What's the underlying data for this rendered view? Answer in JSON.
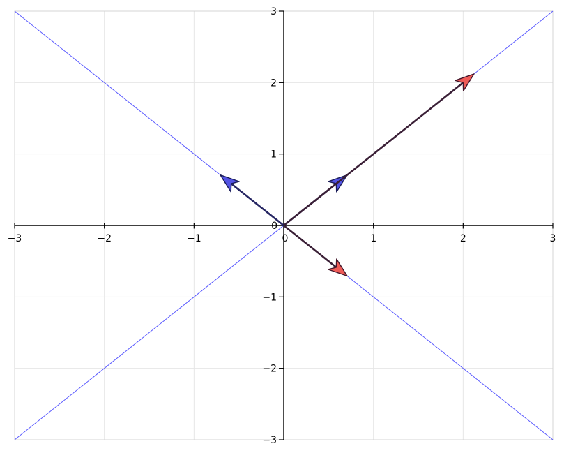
{
  "figure": {
    "background": "#ffffff"
  },
  "chart_data": {
    "type": "scatter",
    "title": "",
    "subtitle": "",
    "xlabel": "",
    "ylabel": "",
    "xlim": [
      -3,
      3
    ],
    "ylim": [
      -3,
      3
    ],
    "grid": true,
    "legend": "none",
    "x_ticks": [
      -3,
      -2,
      -1,
      0,
      1,
      2,
      3
    ],
    "x_tick_labels": [
      "−3",
      "−2",
      "−1",
      "0",
      "1",
      "2",
      "3"
    ],
    "y_ticks": [
      -3,
      -2,
      -1,
      0,
      1,
      2,
      3
    ],
    "y_tick_labels": [
      "−3",
      "−2",
      "−1",
      "0",
      "1",
      "2",
      "3"
    ],
    "colors": {
      "grid": "#e6e6e6",
      "frame": "#d4d4d4",
      "axis": "#000000",
      "eigenline_blue": "#5a5aff",
      "eigenvector_shaft": "#262663",
      "eigenvector_head": "#5353e4",
      "eigenvector_head_edge": "#191b57",
      "transformed_shaft": "#3a1f36",
      "transformed_head": "#ee5b57",
      "transformed_head_edge": "#43162a"
    },
    "lines": [
      {
        "name": "eigenline-v1-span",
        "x": [
          -3,
          3
        ],
        "y": [
          -3,
          3
        ],
        "color_key": "eigenline_blue",
        "width": 1
      },
      {
        "name": "eigenline-v2-span",
        "x": [
          -3,
          3
        ],
        "y": [
          3,
          -3
        ],
        "color_key": "eigenline_blue",
        "width": 1
      }
    ],
    "vectors": [
      {
        "name": "eigenvector-v1",
        "from": [
          0,
          0
        ],
        "to": [
          0.707,
          0.707
        ],
        "shaft_key": "eigenvector_shaft",
        "head_key": "eigenvector_head",
        "head_edge_key": "eigenvector_head_edge"
      },
      {
        "name": "eigenvector-v2",
        "from": [
          0,
          0
        ],
        "to": [
          -0.707,
          0.707
        ],
        "shaft_key": "eigenvector_shaft",
        "head_key": "eigenvector_head",
        "head_edge_key": "eigenvector_head_edge"
      },
      {
        "name": "transformed-vector-v1",
        "from": [
          0,
          0
        ],
        "to": [
          2.121,
          2.121
        ],
        "shaft_key": "transformed_shaft",
        "head_key": "transformed_head",
        "head_edge_key": "transformed_head_edge"
      },
      {
        "name": "transformed-vector-v2",
        "from": [
          0,
          0
        ],
        "to": [
          0.707,
          -0.707
        ],
        "shaft_key": "transformed_shaft",
        "head_key": "transformed_head",
        "head_edge_key": "transformed_head_edge"
      }
    ]
  }
}
